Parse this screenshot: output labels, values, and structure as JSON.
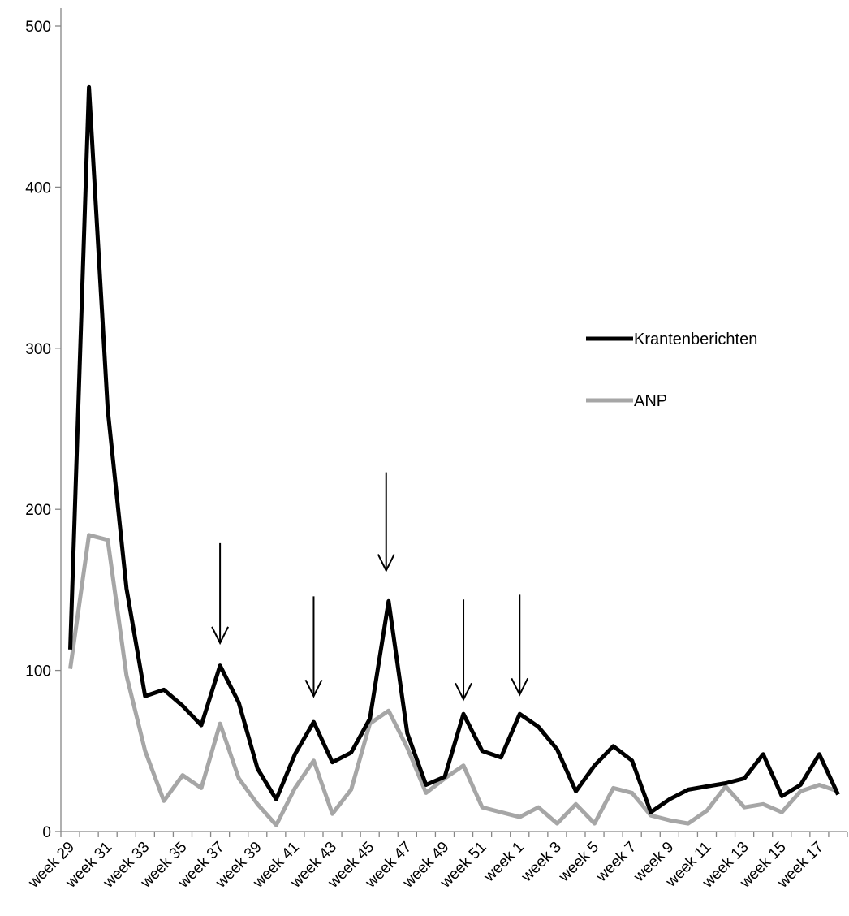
{
  "chart_data": {
    "type": "line",
    "title": "",
    "xlabel": "",
    "ylabel": "",
    "ylim": [
      0,
      500
    ],
    "yticks": [
      0,
      100,
      200,
      300,
      400,
      500
    ],
    "grid": false,
    "legend_placement": "right",
    "x": [
      "week 29",
      "week 30",
      "week 31",
      "week 32",
      "week 33",
      "week 34",
      "week 35",
      "week 36",
      "week 37",
      "week 38",
      "week 39",
      "week 40",
      "week 41",
      "week 42",
      "week 43",
      "week 44",
      "week 45",
      "week 46",
      "week 47",
      "week 48",
      "week 49",
      "week 50",
      "week 51",
      "week 52",
      "week 1",
      "week 2",
      "week 3",
      "week 4",
      "week 5",
      "week 6",
      "week 7",
      "week 8",
      "week 9",
      "week 10",
      "week 11",
      "week 12",
      "week 13",
      "week 14",
      "week 15",
      "week 16",
      "week 17",
      "week 18"
    ],
    "x_tick_labels": [
      "week 29",
      "",
      "week 31",
      "",
      "week 33",
      "",
      "week 35",
      "",
      "week 37",
      "",
      "week 39",
      "",
      "week 41",
      "",
      "week 43",
      "",
      "week 45",
      "",
      "week 47",
      "",
      "week 49",
      "",
      "week 51",
      "",
      "week 1",
      "",
      "week 3",
      "",
      "week 5",
      "",
      "week 7",
      "",
      "week 9",
      "",
      "week 11",
      "",
      "week 13",
      "",
      "week 15",
      "",
      "week 17",
      ""
    ],
    "series": [
      {
        "name": "Krantenberichten",
        "color": "#000000",
        "values": [
          113,
          462,
          262,
          151,
          84,
          88,
          78,
          66,
          103,
          80,
          39,
          20,
          48,
          68,
          43,
          49,
          70,
          143,
          61,
          29,
          34,
          73,
          50,
          46,
          73,
          65,
          51,
          25,
          41,
          53,
          44,
          12,
          20,
          26,
          28,
          30,
          33,
          48,
          22,
          29,
          48,
          23
        ]
      },
      {
        "name": "ANP",
        "color": "#a6a6a6",
        "values": [
          101,
          184,
          181,
          97,
          50,
          19,
          35,
          27,
          67,
          33,
          17,
          4,
          27,
          44,
          11,
          26,
          67,
          75,
          52,
          24,
          33,
          41,
          15,
          12,
          9,
          15,
          5,
          17,
          5,
          27,
          24,
          10,
          7,
          5,
          13,
          28,
          15,
          17,
          12,
          25,
          29,
          25
        ]
      }
    ],
    "annotations": [
      {
        "type": "arrow",
        "x": "week 37",
        "y_start": 179,
        "y_end": 117
      },
      {
        "type": "arrow",
        "x": "week 42",
        "y_start": 146,
        "y_end": 84
      },
      {
        "type": "arrow",
        "x": "week 46",
        "y_start": 223,
        "y_end": 162
      },
      {
        "type": "arrow",
        "x": "week 50",
        "y_start": 144,
        "y_end": 82
      },
      {
        "type": "arrow",
        "x": "week 1",
        "y_start": 147,
        "y_end": 85
      }
    ]
  }
}
